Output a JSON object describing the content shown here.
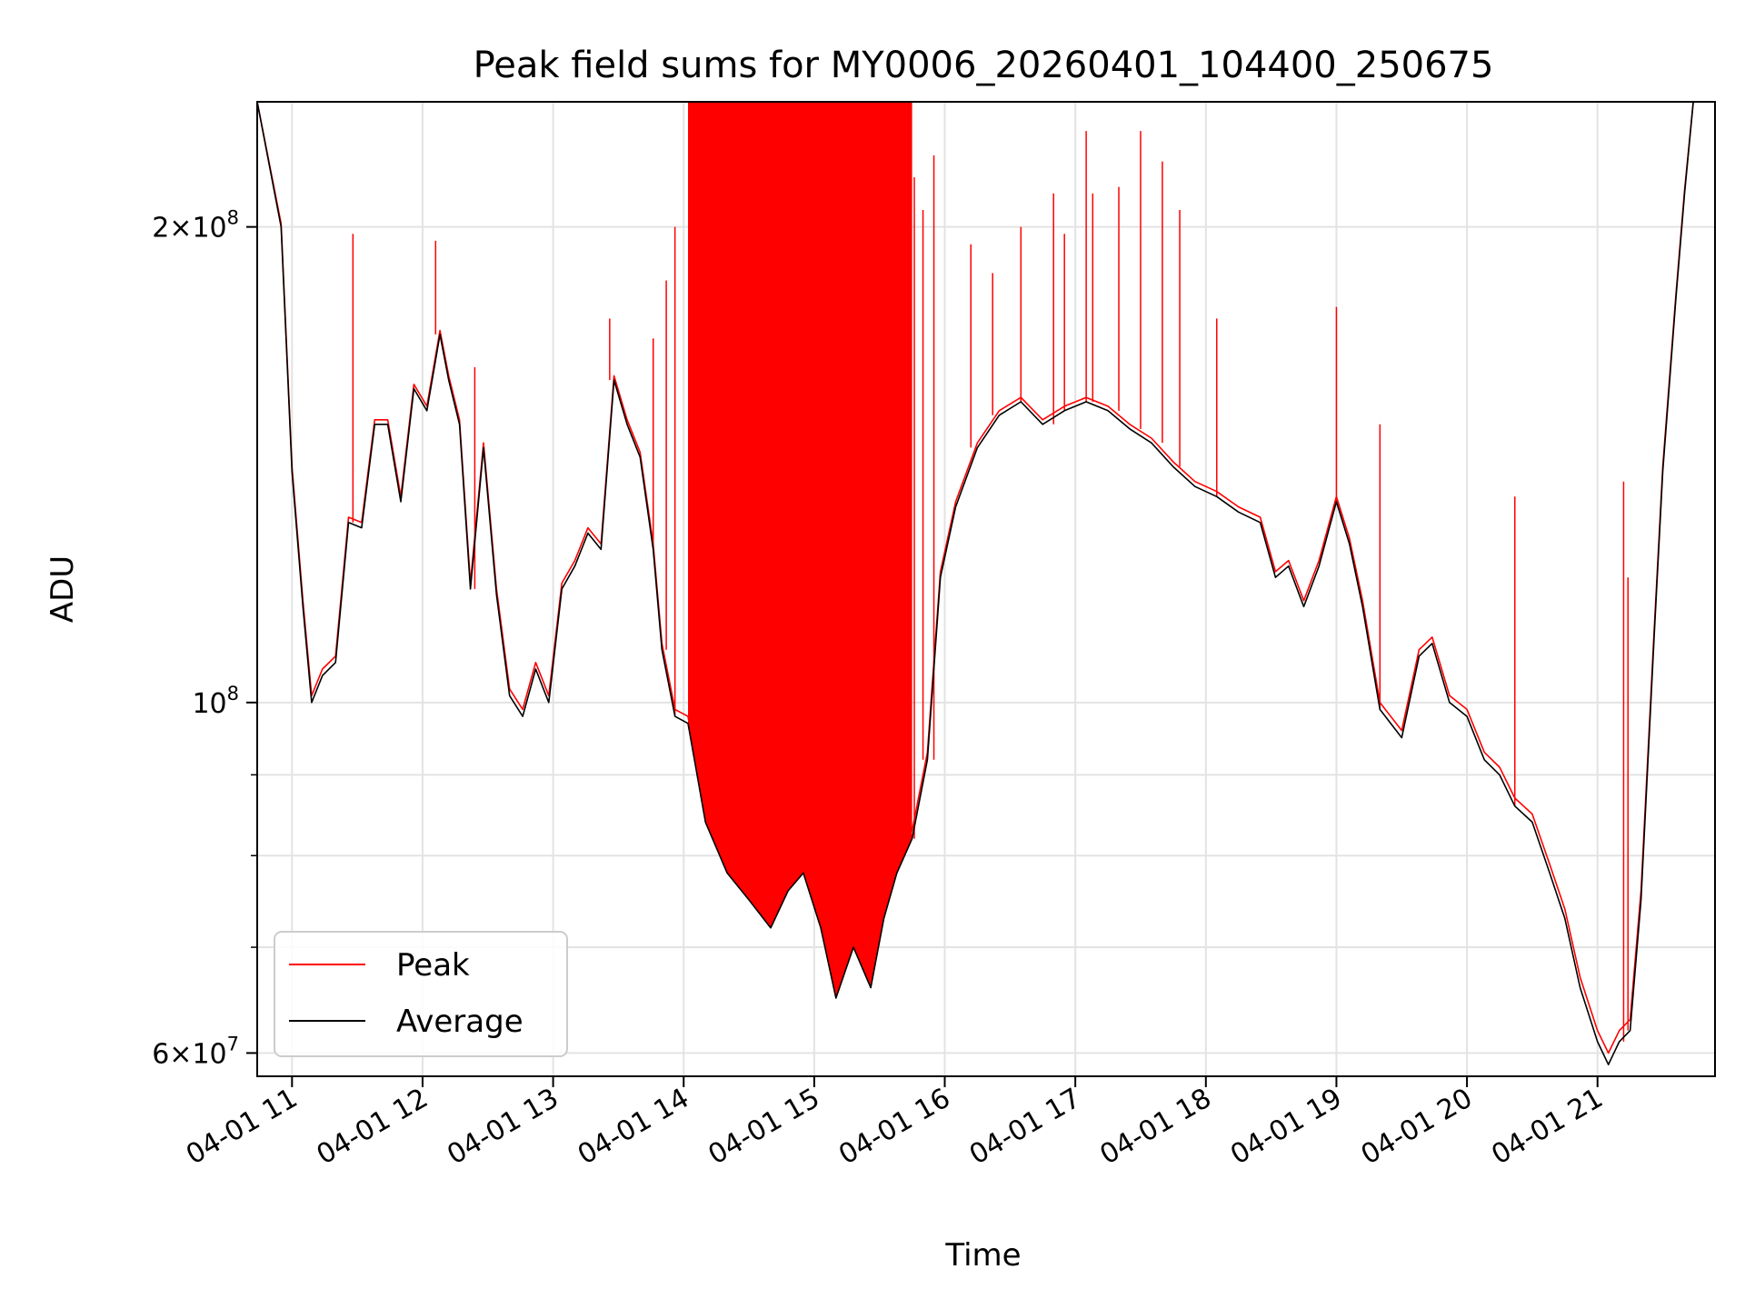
{
  "chart_data": {
    "type": "line",
    "title": "Peak field sums for MY0006_20260401_104400_250675",
    "xlabel": "Time",
    "ylabel": "ADU",
    "yscale": "log",
    "xlim": [
      "04-01 10:44",
      "04-01 21:54"
    ],
    "ylim": [
      58000000,
      240000000
    ],
    "grid": true,
    "legend_position": "lower-left",
    "x_tick_labels": [
      "04-01 11",
      "04-01 12",
      "04-01 13",
      "04-01 14",
      "04-01 15",
      "04-01 16",
      "04-01 17",
      "04-01 18",
      "04-01 19",
      "04-01 20",
      "04-01 21"
    ],
    "x_tick_times": [
      "04-01 11:00",
      "04-01 12:00",
      "04-01 13:00",
      "04-01 14:00",
      "04-01 15:00",
      "04-01 16:00",
      "04-01 17:00",
      "04-01 18:00",
      "04-01 19:00",
      "04-01 20:00",
      "04-01 21:00"
    ],
    "y_tick_labels": [
      {
        "value": 60000000,
        "mantissa": "6",
        "exponent": "7"
      },
      {
        "value": 100000000,
        "mantissa": "",
        "exponent": "8"
      },
      {
        "value": 200000000,
        "mantissa": "2",
        "exponent": "8"
      }
    ],
    "y_minor_ticks": [
      70000000,
      80000000,
      90000000
    ],
    "series": [
      {
        "name": "Average",
        "color": "#000000",
        "x": [
          "04-01 10:44",
          "04-01 10:55",
          "04-01 11:00",
          "04-01 11:05",
          "04-01 11:09",
          "04-01 11:14",
          "04-01 11:20",
          "04-01 11:26",
          "04-01 11:32",
          "04-01 11:38",
          "04-01 11:44",
          "04-01 11:50",
          "04-01 11:56",
          "04-01 12:02",
          "04-01 12:08",
          "04-01 12:12",
          "04-01 12:17",
          "04-01 12:22",
          "04-01 12:28",
          "04-01 12:34",
          "04-01 12:40",
          "04-01 12:46",
          "04-01 12:52",
          "04-01 12:58",
          "04-01 13:04",
          "04-01 13:10",
          "04-01 13:16",
          "04-01 13:22",
          "04-01 13:28",
          "04-01 13:34",
          "04-01 13:40",
          "04-01 13:46",
          "04-01 13:50",
          "04-01 13:56",
          "04-01 14:02",
          "04-01 14:10",
          "04-01 14:20",
          "04-01 14:30",
          "04-01 14:40",
          "04-01 14:48",
          "04-01 14:55",
          "04-01 15:03",
          "04-01 15:10",
          "04-01 15:18",
          "04-01 15:26",
          "04-01 15:32",
          "04-01 15:38",
          "04-01 15:45",
          "04-01 15:52",
          "04-01 15:58",
          "04-01 16:05",
          "04-01 16:15",
          "04-01 16:25",
          "04-01 16:35",
          "04-01 16:45",
          "04-01 16:55",
          "04-01 17:05",
          "04-01 17:15",
          "04-01 17:25",
          "04-01 17:35",
          "04-01 17:45",
          "04-01 17:55",
          "04-01 18:05",
          "04-01 18:15",
          "04-01 18:25",
          "04-01 18:32",
          "04-01 18:38",
          "04-01 18:45",
          "04-01 18:52",
          "04-01 19:00",
          "04-01 19:06",
          "04-01 19:12",
          "04-01 19:20",
          "04-01 19:30",
          "04-01 19:38",
          "04-01 19:44",
          "04-01 19:52",
          "04-01 20:00",
          "04-01 20:08",
          "04-01 20:15",
          "04-01 20:22",
          "04-01 20:30",
          "04-01 20:38",
          "04-01 20:45",
          "04-01 20:52",
          "04-01 21:00",
          "04-01 21:05",
          "04-01 21:10",
          "04-01 21:15",
          "04-01 21:20",
          "04-01 21:26",
          "04-01 21:30",
          "04-01 21:36",
          "04-01 21:40",
          "04-01 21:44",
          "04-01 21:50",
          "04-01 21:54"
        ],
        "y": [
          240000000,
          200000000,
          140000000,
          115000000,
          100000000,
          104000000,
          106000000,
          130000000,
          129000000,
          150000000,
          150000000,
          134000000,
          158000000,
          153000000,
          171000000,
          160000000,
          150000000,
          118000000,
          145000000,
          117000000,
          101000000,
          98000000,
          105000000,
          100000000,
          118000000,
          122000000,
          128000000,
          125000000,
          160000000,
          150000000,
          143000000,
          125000000,
          108000000,
          98000000,
          97000000,
          84000000,
          78000000,
          75000000,
          72000000,
          76000000,
          78000000,
          72000000,
          65000000,
          70000000,
          66000000,
          73000000,
          78000000,
          82000000,
          92000000,
          120000000,
          133000000,
          145000000,
          152000000,
          155000000,
          150000000,
          153000000,
          155000000,
          153000000,
          149000000,
          146000000,
          141000000,
          137000000,
          135000000,
          132000000,
          130000000,
          120000000,
          122000000,
          115000000,
          122000000,
          134000000,
          126000000,
          115000000,
          99000000,
          95000000,
          107000000,
          109000000,
          100000000,
          98000000,
          92000000,
          90000000,
          86000000,
          84000000,
          78000000,
          73000000,
          66000000,
          61000000,
          59000000,
          61000000,
          62000000,
          75000000,
          110000000,
          140000000,
          180000000,
          210000000,
          240000000,
          240000000,
          240000000
        ]
      },
      {
        "name": "Peak",
        "color": "#ff0000",
        "note": "",
        "x": [
          "04-01 10:44",
          "04-01 10:55",
          "04-01 11:00",
          "04-01 11:05",
          "04-01 11:09",
          "04-01 11:14",
          "04-01 11:20",
          "04-01 11:26",
          "04-01 11:32",
          "04-01 11:38",
          "04-01 11:44",
          "04-01 11:50",
          "04-01 11:56",
          "04-01 12:02",
          "04-01 12:08",
          "04-01 12:12",
          "04-01 12:17",
          "04-01 12:22",
          "04-01 12:28",
          "04-01 12:34",
          "04-01 12:40",
          "04-01 12:46",
          "04-01 12:52",
          "04-01 12:58",
          "04-01 13:04",
          "04-01 13:10",
          "04-01 13:16",
          "04-01 13:22",
          "04-01 13:28",
          "04-01 13:34",
          "04-01 13:40",
          "04-01 13:46",
          "04-01 13:50",
          "04-01 13:56",
          "04-01 14:02",
          "04-01 14:10",
          "04-01 14:20",
          "04-01 14:30",
          "04-01 14:40",
          "04-01 14:48",
          "04-01 14:55",
          "04-01 15:03",
          "04-01 15:10",
          "04-01 15:18",
          "04-01 15:26",
          "04-01 15:32",
          "04-01 15:38",
          "04-01 15:45",
          "04-01 15:52",
          "04-01 15:58",
          "04-01 16:05",
          "04-01 16:15",
          "04-01 16:25",
          "04-01 16:35",
          "04-01 16:45",
          "04-01 16:55",
          "04-01 17:05",
          "04-01 17:15",
          "04-01 17:25",
          "04-01 17:35",
          "04-01 17:45",
          "04-01 17:55",
          "04-01 18:05",
          "04-01 18:15",
          "04-01 18:25",
          "04-01 18:32",
          "04-01 18:38",
          "04-01 18:45",
          "04-01 18:52",
          "04-01 19:00",
          "04-01 19:06",
          "04-01 19:12",
          "04-01 19:20",
          "04-01 19:30",
          "04-01 19:38",
          "04-01 19:44",
          "04-01 19:52",
          "04-01 20:00",
          "04-01 20:08",
          "04-01 20:15",
          "04-01 20:22",
          "04-01 20:30",
          "04-01 20:38",
          "04-01 20:45",
          "04-01 20:52",
          "04-01 21:00",
          "04-01 21:05",
          "04-01 21:10",
          "04-01 21:15",
          "04-01 21:20",
          "04-01 21:26",
          "04-01 21:30",
          "04-01 21:36",
          "04-01 21:40",
          "04-01 21:44",
          "04-01 21:50",
          "04-01 21:54"
        ],
        "y": [
          240000000,
          201000000,
          141000000,
          116000000,
          101000000,
          105000000,
          107000000,
          131000000,
          130000000,
          151000000,
          151000000,
          135000000,
          159000000,
          154000000,
          172000000,
          161000000,
          151000000,
          119000000,
          146000000,
          118000000,
          102000000,
          99000000,
          106000000,
          101000000,
          119000000,
          123000000,
          129000000,
          126000000,
          161000000,
          151000000,
          144000000,
          126000000,
          109000000,
          99000000,
          98000000,
          85000000,
          79000000,
          76000000,
          73000000,
          77000000,
          79000000,
          73000000,
          66000000,
          71000000,
          67000000,
          74000000,
          79000000,
          83000000,
          93000000,
          121000000,
          134000000,
          146000000,
          153000000,
          156000000,
          151000000,
          154000000,
          156000000,
          154000000,
          150000000,
          147000000,
          142000000,
          138000000,
          136000000,
          133000000,
          131000000,
          121000000,
          123000000,
          116000000,
          123000000,
          135000000,
          127000000,
          116000000,
          100000000,
          96000000,
          108000000,
          110000000,
          101000000,
          99000000,
          93000000,
          91000000,
          87000000,
          85000000,
          79000000,
          74000000,
          67000000,
          62000000,
          60000000,
          62000000,
          63000000,
          76000000,
          111000000,
          141000000,
          181000000,
          211000000,
          240000000,
          240000000,
          240000000
        ]
      }
    ],
    "peak_spikes": {
      "x": [
        "04-01 11:28",
        "04-01 12:06",
        "04-01 12:24",
        "04-01 13:26",
        "04-01 13:46",
        "04-01 13:52",
        "04-01 13:56",
        "04-01 15:46",
        "04-01 15:50",
        "04-01 15:55",
        "04-01 16:12",
        "04-01 16:22",
        "04-01 16:35",
        "04-01 16:50",
        "04-01 16:55",
        "04-01 17:05",
        "04-01 17:08",
        "04-01 17:20",
        "04-01 17:30",
        "04-01 17:40",
        "04-01 17:48",
        "04-01 18:05",
        "04-01 19:00",
        "04-01 19:20",
        "04-01 20:22",
        "04-01 21:12",
        "04-01 21:14"
      ],
      "y": [
        198000000,
        196000000,
        163000000,
        175000000,
        170000000,
        185000000,
        200000000,
        215000000,
        205000000,
        222000000,
        195000000,
        187000000,
        200000000,
        210000000,
        198000000,
        230000000,
        210000000,
        212000000,
        230000000,
        220000000,
        205000000,
        175000000,
        178000000,
        150000000,
        135000000,
        138000000,
        120000000
      ]
    },
    "dense_peak_band": {
      "x_start": "04-01 14:00",
      "x_end": "04-01 15:45",
      "y_top": 240000000
    }
  },
  "legend": {
    "peak_label": "Peak",
    "average_label": "Average"
  }
}
